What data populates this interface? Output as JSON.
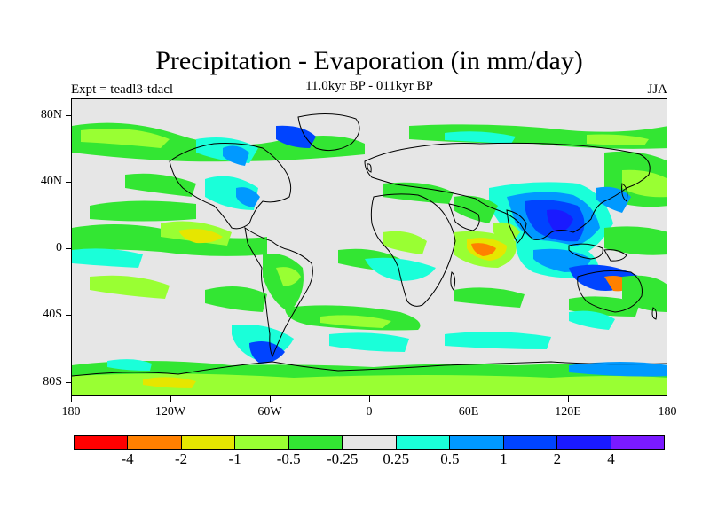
{
  "title": "Precipitation - Evaporation (in mm/day)",
  "subtitle": "11.0kyr BP - 011kyr BP",
  "left_label": "Expt = teadl3-tdacl",
  "right_label": "JJA",
  "map": {
    "lat_ticks": [
      "80N",
      "40N",
      "0",
      "40S",
      "80S"
    ],
    "lon_ticks": [
      "180",
      "120W",
      "60W",
      "0",
      "60E",
      "120E",
      "180"
    ],
    "background_color": "#e6e6e6"
  },
  "colorbar": {
    "colors": [
      "#ff0000",
      "#ff8000",
      "#e6e600",
      "#99ff33",
      "#33e633",
      "#e6e6e6",
      "#1affd9",
      "#0099ff",
      "#0044ff",
      "#1a1aff",
      "#7a1aff"
    ],
    "labels": [
      "-4",
      "-2",
      "-1",
      "-0.5",
      "-0.25",
      "0.25",
      "0.5",
      "1",
      "2",
      "4"
    ]
  }
}
